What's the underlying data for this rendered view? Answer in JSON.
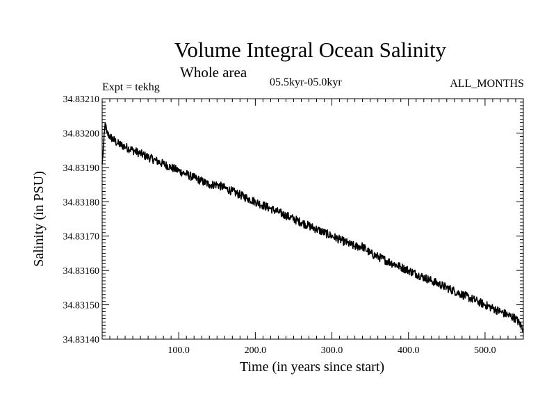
{
  "chart_data": {
    "type": "line",
    "title": "Volume Integral Ocean Salinity",
    "subtitle": "Whole area",
    "experiment": "Expt = tekhg",
    "period": "05.5kyr-05.0kyr",
    "months": "ALL_MONTHS",
    "xlabel": "Time (in years since start)",
    "ylabel": "Salinity (in PSU)",
    "xlim": [
      0,
      550
    ],
    "ylim": [
      34.8314,
      34.8321
    ],
    "xticks": [
      {
        "value": 100,
        "label": "100.0"
      },
      {
        "value": 200,
        "label": "200.0"
      },
      {
        "value": 300,
        "label": "300.0"
      },
      {
        "value": 400,
        "label": "400.0"
      },
      {
        "value": 500,
        "label": "500.0"
      }
    ],
    "yticks": [
      {
        "value": 34.8314,
        "label": "34.83140"
      },
      {
        "value": 34.8315,
        "label": "34.83150"
      },
      {
        "value": 34.8316,
        "label": "34.83160"
      },
      {
        "value": 34.8317,
        "label": "34.83170"
      },
      {
        "value": 34.8318,
        "label": "34.83180"
      },
      {
        "value": 34.8319,
        "label": "34.83190"
      },
      {
        "value": 34.832,
        "label": "34.83200"
      },
      {
        "value": 34.8321,
        "label": "34.83210"
      }
    ],
    "series": [
      {
        "name": "salinity",
        "x": [
          0,
          2,
          4,
          6,
          10,
          20,
          30,
          40,
          50,
          60,
          70,
          80,
          90,
          100,
          110,
          120,
          130,
          140,
          150,
          160,
          170,
          180,
          190,
          200,
          210,
          220,
          230,
          240,
          250,
          260,
          270,
          280,
          290,
          300,
          310,
          320,
          330,
          340,
          350,
          360,
          370,
          380,
          390,
          400,
          410,
          420,
          430,
          440,
          450,
          460,
          470,
          480,
          490,
          500,
          510,
          520,
          530,
          540,
          550
        ],
        "y": [
          34.83191,
          34.83197,
          34.83203,
          34.832,
          34.83199,
          34.83197,
          34.83196,
          34.83195,
          34.83194,
          34.83193,
          34.83192,
          34.83191,
          34.8319,
          34.83189,
          34.83188,
          34.83187,
          34.83186,
          34.83185,
          34.83185,
          34.83184,
          34.83183,
          34.83182,
          34.83181,
          34.8318,
          34.83179,
          34.83178,
          34.83177,
          34.83176,
          34.83175,
          34.83174,
          34.83173,
          34.83172,
          34.83171,
          34.8317,
          34.83169,
          34.83168,
          34.83167,
          34.83167,
          34.83165,
          34.83164,
          34.83163,
          34.83162,
          34.83161,
          34.8316,
          34.83159,
          34.83158,
          34.83157,
          34.83156,
          34.83155,
          34.83154,
          34.83153,
          34.83152,
          34.83151,
          34.8315,
          34.83149,
          34.83148,
          34.83147,
          34.83146,
          34.83143
        ]
      }
    ]
  }
}
